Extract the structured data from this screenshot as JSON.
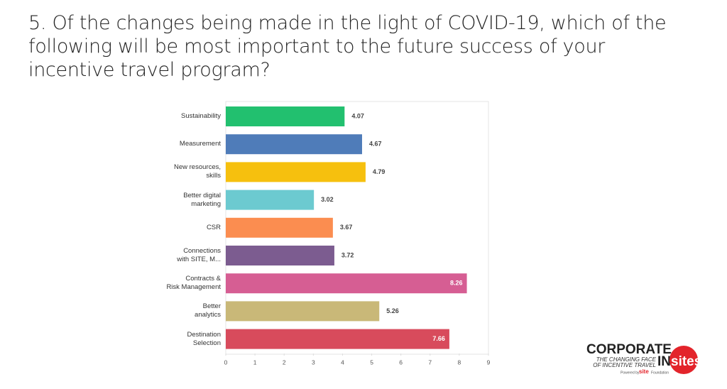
{
  "chart_data": {
    "type": "bar",
    "orientation": "horizontal",
    "title": "5. Of the changes being made in the light of COVID-19, which of the following will be most important to the future success of your incentive travel program?",
    "categories": [
      "Sustainability",
      "Measurement",
      "New resources,\nskills",
      "Better digital\nmarketing",
      "CSR",
      "Connections\nwith SITE, M...",
      "Contracts &\nRisk Management",
      "Better\nanalytics",
      "Destination\nSelection"
    ],
    "values": [
      4.07,
      4.67,
      4.79,
      3.02,
      3.67,
      3.72,
      8.26,
      5.26,
      7.66
    ],
    "colors": [
      "#22c06f",
      "#4f7cb9",
      "#f6c00e",
      "#6ccad0",
      "#fb8d50",
      "#7c5c90",
      "#d65e93",
      "#c9b878",
      "#d84b5c"
    ],
    "xlim": [
      0,
      9
    ],
    "xticks": [
      0,
      1,
      2,
      3,
      4,
      5,
      6,
      7,
      8,
      9
    ],
    "grid": false
  },
  "logo": {
    "line1": "CORPORATE",
    "line2": "THE CHANGING FACE",
    "line3": "OF INCENTIVE TRAVEL",
    "in": "IN",
    "sites": "sites",
    "powered": "Powered by",
    "site": "site",
    "foundation": "Foundation"
  }
}
